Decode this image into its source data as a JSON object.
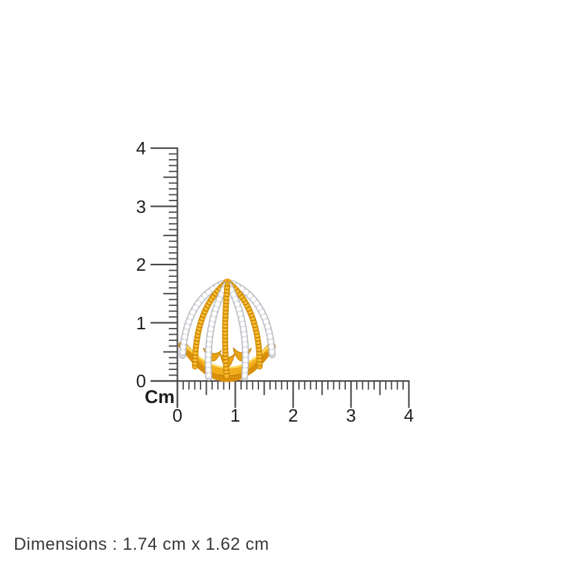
{
  "ruler": {
    "unit_label": "Cm",
    "vertical": {
      "labels": [
        "0",
        "1",
        "2",
        "3",
        "4"
      ]
    },
    "horizontal": {
      "labels": [
        "0",
        "1",
        "2",
        "3",
        "4"
      ]
    },
    "minor_ticks_per_unit": 10
  },
  "caption": {
    "text": "Dimensions : 1.74 cm x 1.62 cm"
  },
  "product": {
    "alt": "gold-diamond-multi-band-cage-ring"
  },
  "colors": {
    "gold": "#F2AE1B",
    "gold_dark": "#B97F07",
    "gold_light": "#FFD95E",
    "diamond_white": "#FFFFFF",
    "ruler_line": "#474747",
    "label": "#1F1F1F",
    "caption": "#383838"
  }
}
